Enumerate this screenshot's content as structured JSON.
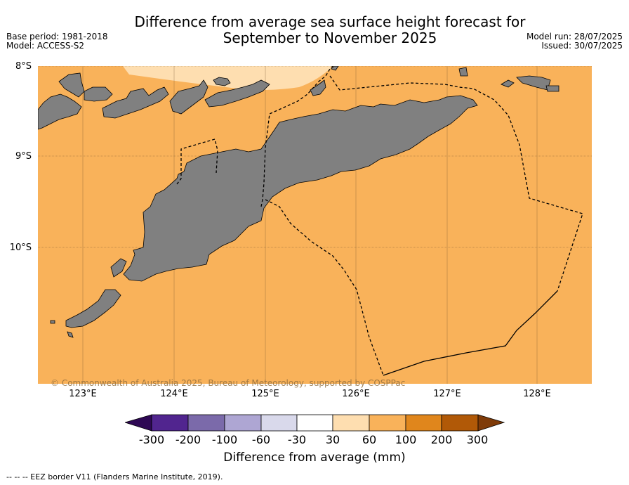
{
  "header": {
    "title_line1": "Difference from average sea surface height forecast for",
    "title_line2": "September to November 2025",
    "base_period": "Base period: 1981-2018",
    "model": "Model: ACCESS-S2",
    "model_run": "Model run: 28/07/2025",
    "issued": "Issued: 30/07/2025"
  },
  "map": {
    "lat_labels": [
      "8°S",
      "9°S",
      "10°S"
    ],
    "lon_labels": [
      "123°E",
      "124°E",
      "125°E",
      "126°E",
      "127°E",
      "128°E"
    ],
    "dominant_category": "60 to 100 mm",
    "minor_category_north": "30 to 60 mm",
    "colors": {
      "ocean": "#f9b25a",
      "ocean_light": "#fedeb0",
      "land": "#808080",
      "grid": "#7a5a30"
    },
    "copyright": "© Commonwealth of Australia 2025, Bureau of Meteorology, supported by COSPPac"
  },
  "colorbar": {
    "ticks": [
      "-300",
      "-200",
      "-100",
      "-60",
      "-30",
      "30",
      "60",
      "100",
      "200",
      "300"
    ],
    "colors": [
      "#2e0854",
      "#51258f",
      "#7b6aaa",
      "#aea6d3",
      "#d9d9eb",
      "#ffffff",
      "#fedeb0",
      "#f9b25a",
      "#e0861c",
      "#b15907",
      "#7f3b08"
    ],
    "title": "Difference from average (mm)"
  },
  "footer": {
    "eez_note": "--  --  -- EEZ border V11 (Flanders Marine Institute, 2019)."
  }
}
